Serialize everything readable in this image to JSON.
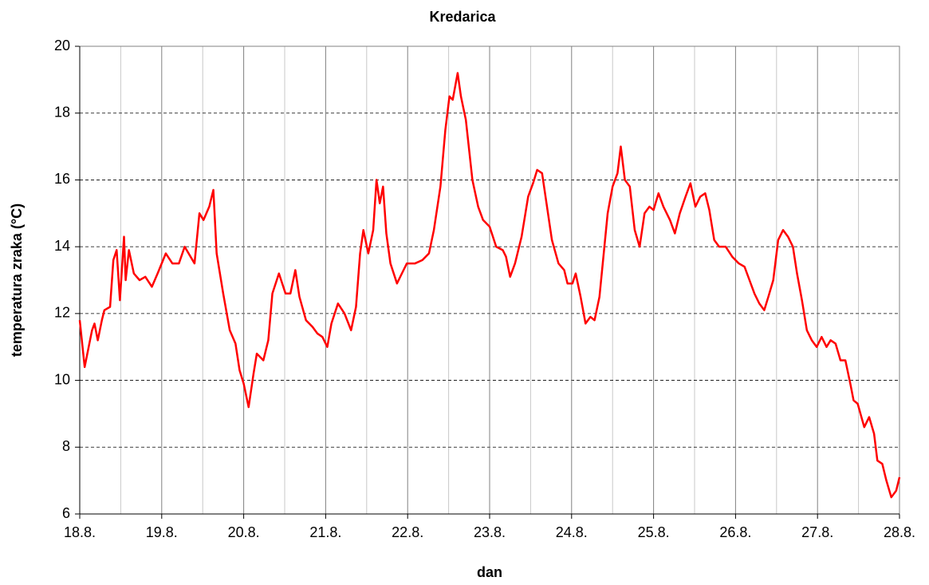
{
  "chart_data": {
    "type": "line",
    "title": "Kredarica",
    "x_label": "dan",
    "y_label": "temperatura zraka (°C)",
    "xlim": [
      0,
      10
    ],
    "xticks": [
      {
        "value": 0,
        "label": "18.8."
      },
      {
        "value": 1,
        "label": "19.8."
      },
      {
        "value": 2,
        "label": "20.8."
      },
      {
        "value": 3,
        "label": "21.8."
      },
      {
        "value": 4,
        "label": "22.8."
      },
      {
        "value": 5,
        "label": "23.8."
      },
      {
        "value": 6,
        "label": "24.8."
      },
      {
        "value": 7,
        "label": "25.8."
      },
      {
        "value": 8,
        "label": "26.8."
      },
      {
        "value": 9,
        "label": "27.8."
      },
      {
        "value": 10,
        "label": "28.8."
      }
    ],
    "x_minor_ticks": [
      0.5,
      1.5,
      2.5,
      3.5,
      4.5,
      5.5,
      6.5,
      7.5,
      8.5,
      9.5
    ],
    "ylim": [
      6,
      20
    ],
    "yticks": [
      6,
      8,
      10,
      12,
      14,
      16,
      18,
      20
    ],
    "grid": true,
    "series": [
      {
        "name": "Kredarica",
        "color": "#ff0000",
        "x": [
          0,
          0.06,
          0.15,
          0.18,
          0.22,
          0.27,
          0.3,
          0.37,
          0.41,
          0.45,
          0.49,
          0.54,
          0.56,
          0.6,
          0.66,
          0.73,
          0.8,
          0.88,
          0.95,
          1.05,
          1.13,
          1.21,
          1.28,
          1.4,
          1.46,
          1.51,
          1.58,
          1.63,
          1.67,
          1.75,
          1.83,
          1.9,
          1.95,
          2.0,
          2.06,
          2.12,
          2.16,
          2.24,
          2.3,
          2.35,
          2.43,
          2.51,
          2.57,
          2.63,
          2.68,
          2.76,
          2.84,
          2.9,
          2.96,
          3.02,
          3.07,
          3.15,
          3.23,
          3.31,
          3.37,
          3.42,
          3.46,
          3.52,
          3.58,
          3.62,
          3.66,
          3.7,
          3.74,
          3.79,
          3.87,
          3.93,
          3.99,
          4.09,
          4.18,
          4.26,
          4.32,
          4.4,
          4.46,
          4.51,
          4.55,
          4.61,
          4.65,
          4.71,
          4.79,
          4.86,
          4.92,
          5.0,
          5.08,
          5.16,
          5.2,
          5.25,
          5.31,
          5.39,
          5.47,
          5.53,
          5.58,
          5.64,
          5.7,
          5.76,
          5.84,
          5.91,
          5.95,
          6.01,
          6.05,
          6.11,
          6.17,
          6.23,
          6.28,
          6.34,
          6.38,
          6.44,
          6.5,
          6.56,
          6.6,
          6.65,
          6.71,
          6.77,
          6.83,
          6.89,
          6.95,
          7.0,
          7.06,
          7.12,
          7.2,
          7.26,
          7.32,
          7.39,
          7.45,
          7.51,
          7.57,
          7.63,
          7.68,
          7.74,
          7.8,
          7.88,
          7.96,
          8.04,
          8.11,
          8.17,
          8.23,
          8.29,
          8.35,
          8.4,
          8.46,
          8.52,
          8.58,
          8.64,
          8.7,
          8.75,
          8.81,
          8.87,
          8.93,
          8.99,
          9.05,
          9.11,
          9.16,
          9.22,
          9.28,
          9.34,
          9.4,
          9.44,
          9.49,
          9.57,
          9.63,
          9.69,
          9.73,
          9.79,
          9.84,
          9.9,
          9.96,
          10
        ],
        "values": [
          11.8,
          10.4,
          11.5,
          11.7,
          11.2,
          11.8,
          12.1,
          12.2,
          13.6,
          13.9,
          12.4,
          14.3,
          13.0,
          13.9,
          13.2,
          13.0,
          13.1,
          12.8,
          13.2,
          13.8,
          13.5,
          13.5,
          14.0,
          13.5,
          15.0,
          14.8,
          15.2,
          15.7,
          13.8,
          12.6,
          11.5,
          11.1,
          10.3,
          9.9,
          9.2,
          10.2,
          10.8,
          10.6,
          11.2,
          12.6,
          13.2,
          12.6,
          12.6,
          13.3,
          12.5,
          11.8,
          11.6,
          11.4,
          11.3,
          11.0,
          11.7,
          12.3,
          12.0,
          11.5,
          12.2,
          13.8,
          14.5,
          13.8,
          14.5,
          16.0,
          15.3,
          15.8,
          14.4,
          13.5,
          12.9,
          13.2,
          13.5,
          13.5,
          13.6,
          13.8,
          14.5,
          15.8,
          17.5,
          18.5,
          18.4,
          19.2,
          18.5,
          17.8,
          16.0,
          15.2,
          14.8,
          14.6,
          14.0,
          13.9,
          13.7,
          13.1,
          13.5,
          14.3,
          15.5,
          15.9,
          16.3,
          16.2,
          15.2,
          14.2,
          13.5,
          13.3,
          12.9,
          12.9,
          13.2,
          12.5,
          11.7,
          11.9,
          11.8,
          12.5,
          13.5,
          15.0,
          15.8,
          16.2,
          17.0,
          16.0,
          15.8,
          14.5,
          14.0,
          15.0,
          15.2,
          15.1,
          15.6,
          15.2,
          14.8,
          14.4,
          15.0,
          15.5,
          15.9,
          15.2,
          15.5,
          15.6,
          15.1,
          14.2,
          14.0,
          14.0,
          13.7,
          13.5,
          13.4,
          13.0,
          12.6,
          12.3,
          12.1,
          12.5,
          13.0,
          14.2,
          14.5,
          14.3,
          14.0,
          13.2,
          12.4,
          11.5,
          11.2,
          11.0,
          11.3,
          11.0,
          11.2,
          11.1,
          10.6,
          10.6,
          9.9,
          9.4,
          9.3,
          8.6,
          8.9,
          8.4,
          7.6,
          7.5,
          7.0,
          6.5,
          6.7,
          7.1
        ]
      }
    ]
  }
}
